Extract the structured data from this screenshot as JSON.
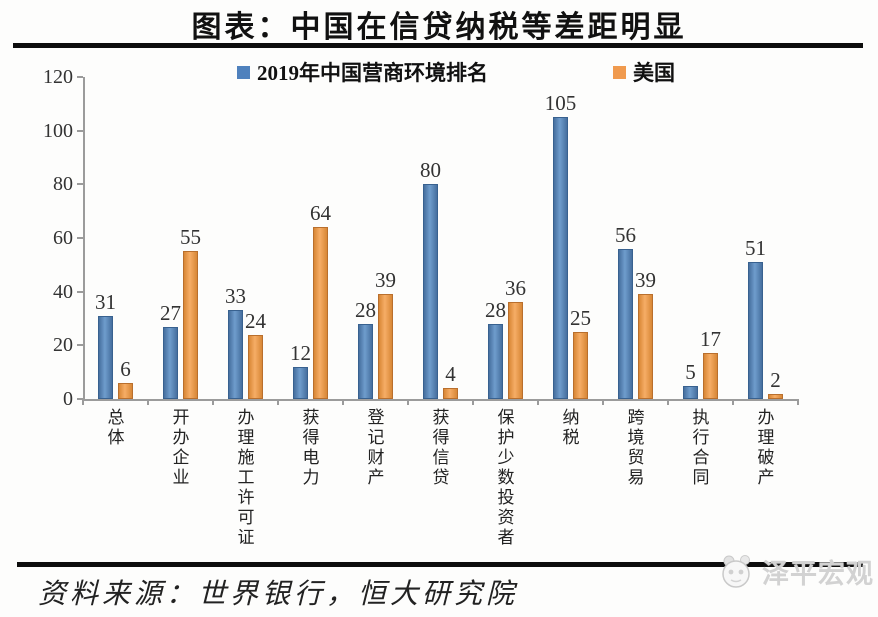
{
  "title": "图表：中国在信贷纳税等差距明显",
  "legend": [
    {
      "label": "2019年中国营商环境排名",
      "color": "#4f81bd"
    },
    {
      "label": "美国",
      "color": "#f09a4e"
    }
  ],
  "chart_data": {
    "type": "bar",
    "title": "图表：中国在信贷纳税等差距明显",
    "categories": [
      "总体",
      "开办企业",
      "办理施工许可证",
      "获得电力",
      "登记财产",
      "获得信贷",
      "保护少数投资者",
      "纳税",
      "跨境贸易",
      "执行合同",
      "办理破产"
    ],
    "series": [
      {
        "name": "2019年中国营商环境排名",
        "color": "#4f81bd",
        "values": [
          31,
          27,
          33,
          12,
          28,
          80,
          28,
          105,
          56,
          5,
          51
        ]
      },
      {
        "name": "美国",
        "color": "#f09a4e",
        "values": [
          6,
          55,
          24,
          64,
          39,
          4,
          36,
          25,
          39,
          17,
          2
        ]
      }
    ],
    "xlabel": "",
    "ylabel": "",
    "ylim": [
      0,
      120
    ],
    "yticks": [
      0,
      20,
      40,
      60,
      80,
      100,
      120
    ],
    "grid": false,
    "legend_position": "top",
    "data_labels": true
  },
  "footer": {
    "source": "资料来源：世界银行，恒大研究院",
    "watermark": "泽平宏观"
  }
}
